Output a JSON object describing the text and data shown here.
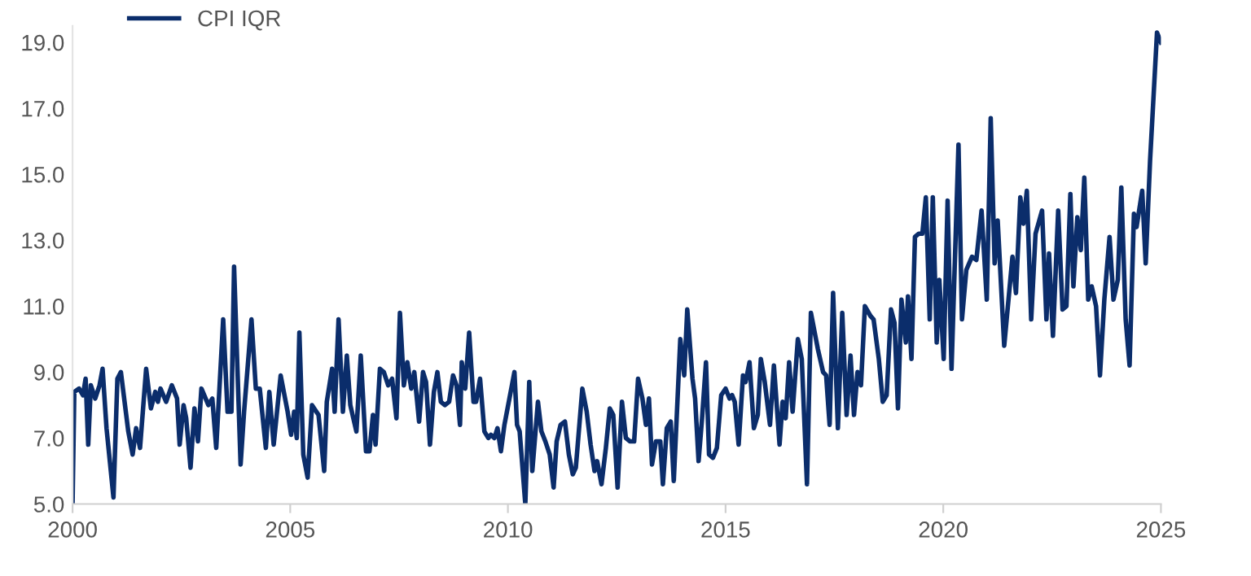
{
  "chart_data": {
    "type": "line",
    "xlim": [
      2000,
      2025
    ],
    "xticks": [
      2000,
      2005,
      2010,
      2015,
      2020,
      2025
    ],
    "ylim": [
      5,
      19.5
    ],
    "yticks": [
      {
        "value": 5,
        "label": "5.0"
      },
      {
        "value": 7,
        "label": "7.0"
      },
      {
        "value": 9,
        "label": "9.0"
      },
      {
        "value": 11,
        "label": "11.0"
      },
      {
        "value": 13,
        "label": "13.0"
      },
      {
        "value": 15,
        "label": "15.0"
      },
      {
        "value": 17,
        "label": "17.0"
      },
      {
        "value": 19,
        "label": "19.0"
      }
    ],
    "grid": false,
    "legend": "top left",
    "marker": "none",
    "line_style": "solid",
    "series": [
      {
        "name": "CPI IQR",
        "color": "#0b2d6b",
        "x": [
          2000.0,
          2000.04,
          2000.15,
          2000.24,
          2000.3,
          2000.36,
          2000.42,
          2000.52,
          2000.62,
          2000.69,
          2000.78,
          2000.94,
          2001.03,
          2001.11,
          2001.28,
          2001.38,
          2001.46,
          2001.55,
          2001.69,
          2001.8,
          2001.9,
          2001.96,
          2002.02,
          2002.15,
          2002.28,
          2002.4,
          2002.46,
          2002.55,
          2002.61,
          2002.71,
          2002.8,
          2002.88,
          2002.96,
          2003.12,
          2003.21,
          2003.3,
          2003.46,
          2003.56,
          2003.65,
          2003.71,
          2003.86,
          2003.94,
          2004.11,
          2004.21,
          2004.3,
          2004.44,
          2004.52,
          2004.62,
          2004.78,
          2004.94,
          2005.02,
          2005.09,
          2005.15,
          2005.21,
          2005.3,
          2005.4,
          2005.5,
          2005.65,
          2005.78,
          2005.84,
          2005.96,
          2006.02,
          2006.11,
          2006.21,
          2006.3,
          2006.38,
          2006.52,
          2006.62,
          2006.74,
          2006.82,
          2006.9,
          2006.96,
          2007.06,
          2007.15,
          2007.25,
          2007.34,
          2007.44,
          2007.52,
          2007.61,
          2007.69,
          2007.78,
          2007.85,
          2007.96,
          2008.05,
          2008.12,
          2008.21,
          2008.3,
          2008.38,
          2008.46,
          2008.55,
          2008.65,
          2008.74,
          2008.82,
          2008.9,
          2008.94,
          2009.02,
          2009.11,
          2009.21,
          2009.27,
          2009.36,
          2009.46,
          2009.55,
          2009.61,
          2009.69,
          2009.76,
          2009.84,
          2009.92,
          2010.15,
          2010.21,
          2010.27,
          2010.4,
          2010.49,
          2010.56,
          2010.69,
          2010.77,
          2010.86,
          2010.96,
          2011.05,
          2011.12,
          2011.21,
          2011.31,
          2011.4,
          2011.49,
          2011.56,
          2011.71,
          2011.81,
          2011.9,
          2011.99,
          2012.05,
          2012.15,
          2012.25,
          2012.34,
          2012.42,
          2012.52,
          2012.62,
          2012.71,
          2012.8,
          2012.9,
          2012.99,
          2013.09,
          2013.17,
          2013.24,
          2013.31,
          2013.4,
          2013.5,
          2013.56,
          2013.65,
          2013.74,
          2013.81,
          2013.96,
          2014.05,
          2014.12,
          2014.24,
          2014.3,
          2014.38,
          2014.46,
          2014.55,
          2014.62,
          2014.71,
          2014.8,
          2014.9,
          2015.0,
          2015.09,
          2015.15,
          2015.21,
          2015.3,
          2015.4,
          2015.46,
          2015.55,
          2015.65,
          2015.74,
          2015.81,
          2015.9,
          2016.02,
          2016.11,
          2016.24,
          2016.31,
          2016.38,
          2016.46,
          2016.54,
          2016.66,
          2016.75,
          2016.87,
          2016.96,
          2017.12,
          2017.24,
          2017.31,
          2017.39,
          2017.47,
          2017.58,
          2017.68,
          2017.78,
          2017.87,
          2017.95,
          2018.03,
          2018.11,
          2018.2,
          2018.33,
          2018.4,
          2018.52,
          2018.61,
          2018.7,
          2018.8,
          2018.88,
          2018.96,
          2019.04,
          2019.14,
          2019.19,
          2019.27,
          2019.35,
          2019.44,
          2019.52,
          2019.6,
          2019.69,
          2019.76,
          2019.85,
          2019.91,
          2020.01,
          2020.1,
          2020.19,
          2020.35,
          2020.43,
          2020.53,
          2020.66,
          2020.76,
          2020.88,
          2021.0,
          2021.09,
          2021.18,
          2021.25,
          2021.4,
          2021.59,
          2021.67,
          2021.77,
          2021.84,
          2021.92,
          2022.02,
          2022.12,
          2022.27,
          2022.37,
          2022.43,
          2022.52,
          2022.64,
          2022.74,
          2022.83,
          2022.92,
          2022.99,
          2023.08,
          2023.16,
          2023.24,
          2023.33,
          2023.41,
          2023.51,
          2023.6,
          2023.7,
          2023.82,
          2023.91,
          2024.01,
          2024.09,
          2024.19,
          2024.28,
          2024.38,
          2024.44,
          2024.57,
          2024.65,
          2024.75,
          2024.91,
          2025.0
        ],
        "values": [
          5.0,
          8.4,
          8.5,
          8.3,
          8.8,
          6.8,
          8.6,
          8.2,
          8.6,
          9.1,
          7.3,
          5.2,
          8.8,
          9.0,
          7.2,
          6.5,
          7.3,
          6.7,
          9.1,
          7.9,
          8.4,
          8.1,
          8.5,
          8.1,
          8.6,
          8.2,
          6.8,
          8.0,
          7.6,
          6.1,
          7.9,
          6.9,
          8.5,
          8.0,
          8.2,
          6.7,
          10.6,
          7.8,
          7.8,
          12.2,
          6.2,
          7.8,
          10.6,
          8.5,
          8.5,
          6.7,
          8.4,
          6.8,
          8.9,
          7.8,
          7.1,
          7.8,
          7.0,
          10.2,
          6.5,
          5.8,
          8.0,
          7.7,
          6.0,
          8.1,
          9.1,
          7.8,
          10.6,
          7.8,
          9.5,
          8.0,
          7.2,
          9.5,
          6.6,
          6.6,
          7.7,
          6.8,
          9.1,
          9.0,
          8.6,
          8.8,
          7.6,
          10.8,
          8.6,
          9.3,
          8.5,
          9.0,
          7.5,
          9.0,
          8.7,
          6.8,
          8.4,
          9.0,
          8.1,
          8.0,
          8.1,
          8.9,
          8.6,
          7.4,
          9.3,
          8.5,
          10.2,
          8.1,
          8.1,
          8.8,
          7.2,
          7.0,
          7.1,
          7.0,
          7.3,
          6.6,
          7.4,
          9.0,
          7.4,
          7.2,
          5.0,
          8.7,
          6.0,
          8.1,
          7.2,
          6.9,
          6.5,
          5.5,
          6.9,
          7.4,
          7.5,
          6.5,
          5.9,
          6.1,
          8.5,
          7.8,
          6.8,
          6.0,
          6.3,
          5.6,
          6.7,
          7.9,
          7.7,
          5.5,
          8.1,
          7.0,
          6.9,
          6.9,
          8.8,
          8.2,
          7.4,
          8.2,
          6.2,
          6.9,
          6.9,
          5.6,
          7.3,
          7.5,
          5.7,
          10.0,
          8.9,
          10.9,
          8.8,
          8.2,
          6.3,
          7.6,
          9.3,
          6.5,
          6.4,
          6.7,
          8.3,
          8.5,
          8.2,
          8.3,
          8.1,
          6.8,
          8.9,
          8.7,
          9.3,
          7.3,
          7.7,
          9.4,
          8.7,
          7.4,
          9.2,
          6.8,
          8.1,
          7.6,
          9.3,
          7.8,
          10.0,
          9.4,
          5.6,
          10.8,
          9.7,
          9.0,
          8.9,
          7.4,
          11.4,
          7.3,
          10.8,
          7.7,
          9.5,
          7.7,
          9.0,
          8.6,
          11.0,
          10.7,
          10.6,
          9.4,
          8.1,
          8.3,
          10.9,
          10.5,
          7.9,
          11.2,
          9.9,
          11.3,
          9.4,
          13.1,
          13.2,
          13.2,
          14.3,
          10.6,
          14.3,
          9.9,
          11.8,
          9.4,
          14.2,
          9.1,
          15.9,
          10.6,
          12.1,
          12.5,
          12.4,
          13.9,
          11.2,
          16.7,
          12.3,
          13.6,
          9.8,
          12.5,
          11.4,
          14.3,
          13.5,
          14.5,
          10.6,
          13.2,
          13.9,
          10.6,
          12.6,
          10.1,
          13.9,
          10.9,
          11.0,
          14.4,
          11.6,
          13.7,
          12.7,
          14.9,
          11.2,
          11.6,
          11.0,
          8.9,
          11.2,
          13.1,
          11.2,
          11.8,
          14.6,
          10.6,
          9.2,
          13.8,
          13.4,
          14.5,
          12.3,
          15.4,
          19.3,
          19.0
        ]
      }
    ]
  }
}
